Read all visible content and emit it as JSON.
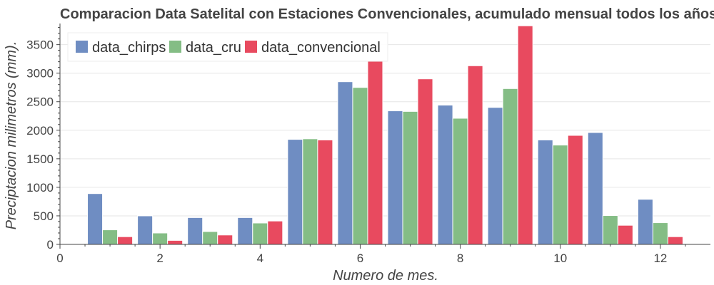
{
  "chart_data": {
    "type": "bar",
    "title": "Comparacion Data Satelital con Estaciones Convencionales, acumulado mensual todos los años",
    "xlabel": "Numero de mes.",
    "ylabel": "Preciptacion milimetros (mm).",
    "x": [
      1,
      2,
      3,
      4,
      5,
      6,
      7,
      8,
      9,
      10,
      11,
      12
    ],
    "xlim": [
      0,
      13
    ],
    "ylim": [
      0,
      3870
    ],
    "xticks": [
      0,
      2,
      4,
      6,
      8,
      10,
      12
    ],
    "yticks": [
      0,
      500,
      1000,
      1500,
      2000,
      2500,
      3000,
      3500
    ],
    "grid": true,
    "legend_position": "top-left",
    "series": [
      {
        "name": "data_chirps",
        "color": "#6f8dc2",
        "values": [
          890,
          500,
          470,
          470,
          1840,
          2850,
          2340,
          2440,
          2400,
          1830,
          1960,
          790
        ]
      },
      {
        "name": "data_cru",
        "color": "#84bd85",
        "values": [
          255,
          200,
          225,
          375,
          1850,
          2750,
          2330,
          2210,
          2730,
          1740,
          505,
          380
        ]
      },
      {
        "name": "data_convencional",
        "color": "#e84a5f",
        "values": [
          135,
          70,
          165,
          410,
          1830,
          3220,
          2900,
          3130,
          3830,
          1910,
          335,
          135
        ]
      }
    ]
  }
}
